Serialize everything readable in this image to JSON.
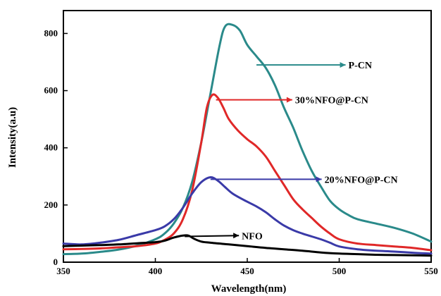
{
  "chart_data": {
    "type": "line",
    "title": "",
    "xlabel": "Wavelength(nm)",
    "ylabel": "Intensity(a.u)",
    "xlim": [
      350,
      550
    ],
    "ylim": [
      0,
      880
    ],
    "xticks": [
      350,
      400,
      450,
      500,
      550
    ],
    "yticks": [
      0,
      200,
      400,
      600,
      800
    ],
    "grid": false,
    "legend": "callout arrows",
    "series": [
      {
        "name": "P-CN",
        "color": "#2a8a8a",
        "points": [
          [
            350,
            28
          ],
          [
            360,
            30
          ],
          [
            370,
            36
          ],
          [
            380,
            44
          ],
          [
            390,
            58
          ],
          [
            400,
            80
          ],
          [
            405,
            100
          ],
          [
            410,
            135
          ],
          [
            415,
            190
          ],
          [
            420,
            280
          ],
          [
            425,
            420
          ],
          [
            430,
            590
          ],
          [
            435,
            760
          ],
          [
            438,
            825
          ],
          [
            442,
            830
          ],
          [
            446,
            810
          ],
          [
            450,
            760
          ],
          [
            455,
            720
          ],
          [
            460,
            680
          ],
          [
            465,
            620
          ],
          [
            470,
            540
          ],
          [
            475,
            470
          ],
          [
            480,
            390
          ],
          [
            485,
            320
          ],
          [
            490,
            265
          ],
          [
            495,
            215
          ],
          [
            500,
            185
          ],
          [
            505,
            165
          ],
          [
            510,
            150
          ],
          [
            520,
            135
          ],
          [
            530,
            120
          ],
          [
            540,
            100
          ],
          [
            550,
            72
          ]
        ]
      },
      {
        "name": "30%NFO@P-CN",
        "color": "#e02828",
        "points": [
          [
            350,
            45
          ],
          [
            360,
            46
          ],
          [
            370,
            48
          ],
          [
            380,
            52
          ],
          [
            390,
            56
          ],
          [
            400,
            65
          ],
          [
            405,
            78
          ],
          [
            410,
            100
          ],
          [
            415,
            150
          ],
          [
            420,
            250
          ],
          [
            425,
            420
          ],
          [
            428,
            540
          ],
          [
            431,
            585
          ],
          [
            434,
            575
          ],
          [
            437,
            540
          ],
          [
            440,
            500
          ],
          [
            445,
            460
          ],
          [
            450,
            430
          ],
          [
            455,
            405
          ],
          [
            460,
            370
          ],
          [
            465,
            320
          ],
          [
            470,
            270
          ],
          [
            475,
            220
          ],
          [
            480,
            185
          ],
          [
            485,
            155
          ],
          [
            490,
            125
          ],
          [
            495,
            100
          ],
          [
            500,
            80
          ],
          [
            510,
            65
          ],
          [
            520,
            60
          ],
          [
            530,
            55
          ],
          [
            540,
            50
          ],
          [
            550,
            42
          ]
        ]
      },
      {
        "name": "20%NFO@P-CN",
        "color": "#3a3aa8",
        "points": [
          [
            350,
            65
          ],
          [
            360,
            62
          ],
          [
            370,
            68
          ],
          [
            380,
            78
          ],
          [
            390,
            95
          ],
          [
            400,
            112
          ],
          [
            405,
            125
          ],
          [
            410,
            150
          ],
          [
            415,
            190
          ],
          [
            420,
            240
          ],
          [
            425,
            280
          ],
          [
            430,
            297
          ],
          [
            434,
            285
          ],
          [
            438,
            262
          ],
          [
            442,
            240
          ],
          [
            448,
            218
          ],
          [
            455,
            195
          ],
          [
            460,
            175
          ],
          [
            465,
            150
          ],
          [
            470,
            128
          ],
          [
            475,
            112
          ],
          [
            480,
            100
          ],
          [
            485,
            90
          ],
          [
            490,
            80
          ],
          [
            495,
            68
          ],
          [
            500,
            55
          ],
          [
            510,
            45
          ],
          [
            520,
            40
          ],
          [
            530,
            37
          ],
          [
            540,
            33
          ],
          [
            550,
            30
          ]
        ]
      },
      {
        "name": "NFO",
        "color": "#000000",
        "points": [
          [
            350,
            56
          ],
          [
            360,
            58
          ],
          [
            370,
            60
          ],
          [
            380,
            62
          ],
          [
            390,
            66
          ],
          [
            400,
            70
          ],
          [
            405,
            75
          ],
          [
            410,
            86
          ],
          [
            415,
            93
          ],
          [
            418,
            93
          ],
          [
            421,
            82
          ],
          [
            425,
            72
          ],
          [
            430,
            68
          ],
          [
            440,
            62
          ],
          [
            450,
            56
          ],
          [
            460,
            50
          ],
          [
            470,
            45
          ],
          [
            480,
            40
          ],
          [
            490,
            34
          ],
          [
            500,
            30
          ],
          [
            510,
            28
          ],
          [
            520,
            26
          ],
          [
            530,
            25
          ],
          [
            540,
            24
          ],
          [
            550,
            23
          ]
        ]
      }
    ],
    "annotations": [
      {
        "text": "P-CN",
        "series": "P-CN",
        "at": [
          455,
          690
        ],
        "label_at": [
          505,
          690
        ]
      },
      {
        "text": "30%NFO@P-CN",
        "series": "30%NFO@P-CN",
        "at": [
          433,
          568
        ],
        "label_at": [
          476,
          568
        ]
      },
      {
        "text": "20%NFO@P-CN",
        "series": "20%NFO@P-CN",
        "at": [
          430,
          290
        ],
        "label_at": [
          492,
          290
        ]
      },
      {
        "text": "NFO",
        "series": "NFO",
        "at": [
          416,
          90
        ],
        "label_at": [
          447,
          93
        ]
      }
    ]
  }
}
